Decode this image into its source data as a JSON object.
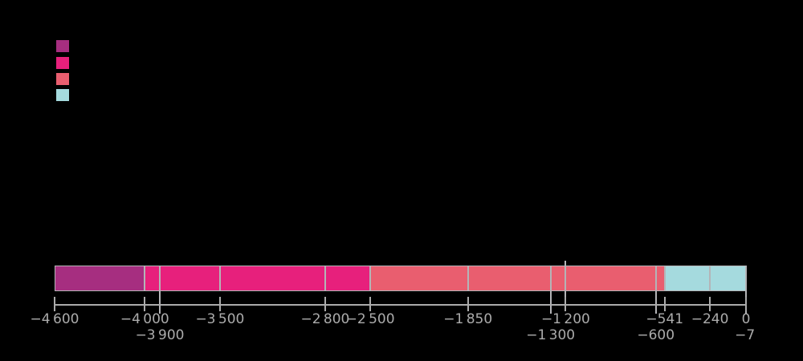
{
  "background_color": "#000000",
  "axis_text_color": "#ababab",
  "line_color": "#b4b4b7",
  "legend": {
    "position": "upper-left",
    "swatches": [
      {
        "name": "legend-swatch-1",
        "color": "#a62e80",
        "label": ""
      },
      {
        "name": "legend-swatch-2",
        "color": "#e7207c",
        "label": ""
      },
      {
        "name": "legend-swatch-3",
        "color": "#e95e6f",
        "label": ""
      },
      {
        "name": "legend-swatch-4",
        "color": "#a5dade",
        "label": ""
      }
    ]
  },
  "chart_data": {
    "type": "bar",
    "subtype": "horizontal-stacked-timeline",
    "title": "",
    "xlabel": "",
    "ylabel": "",
    "grid": false,
    "legend_position": "upper-left",
    "x_range": [
      -4600,
      0
    ],
    "segments": [
      {
        "start": -4600,
        "end": -4000,
        "color": "#a62e80"
      },
      {
        "start": -4000,
        "end": -2500,
        "color": "#e7207c"
      },
      {
        "start": -2500,
        "end": -541,
        "color": "#e95e6f"
      },
      {
        "start": -541,
        "end": 0,
        "color": "#a5dade"
      }
    ],
    "segment_boundaries": [
      -4000,
      -2500,
      -541
    ],
    "event_lines_short": [
      -3500,
      -2800,
      -1850,
      -240
    ],
    "event_lines_long": [
      -3900,
      -1300,
      -600
    ],
    "annotation_line_value": -1200,
    "bar_right_edge_value": 0,
    "tick_labels_row1": [
      {
        "value": -4600,
        "label": "−4 600"
      },
      {
        "value": -4000,
        "label": "−4 000"
      },
      {
        "value": -3500,
        "label": "−3 500"
      },
      {
        "value": -2800,
        "label": "−2 800"
      },
      {
        "value": -2500,
        "label": "−2 500"
      },
      {
        "value": -1850,
        "label": "−1 850"
      },
      {
        "value": -1200,
        "label": "−1 200"
      },
      {
        "value": -541,
        "label": "−541"
      },
      {
        "value": -240,
        "label": "−240"
      },
      {
        "value": 0,
        "label": "0"
      }
    ],
    "tick_labels_row2": [
      {
        "value": -3900,
        "label": "−3 900"
      },
      {
        "value": -1300,
        "label": "−1 300"
      },
      {
        "value": -600,
        "label": "−600"
      },
      {
        "value": -7,
        "label": "−7"
      }
    ]
  }
}
